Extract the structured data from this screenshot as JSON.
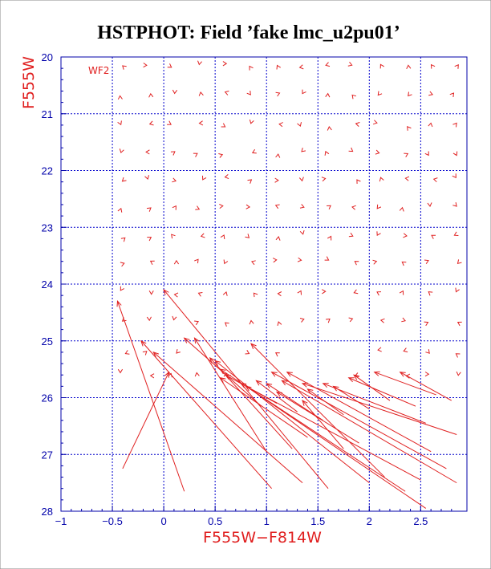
{
  "chart_data": {
    "type": "scatter",
    "title": "HSTPHOT: Field ’fake lmc_u2pu01’",
    "xlabel": "F555W−F814W",
    "ylabel": "F555W",
    "chip_label": "WF2",
    "xlim": [
      -1.0,
      2.95
    ],
    "ylim": [
      28,
      20
    ],
    "y_inverted": true,
    "grid": true,
    "x_ticks": [
      {
        "v": -1,
        "label": "−1"
      },
      {
        "v": -0.5,
        "label": "−0.5"
      },
      {
        "v": 0,
        "label": "0"
      },
      {
        "v": 0.5,
        "label": "0.5"
      },
      {
        "v": 1,
        "label": "1"
      },
      {
        "v": 1.5,
        "label": "1.5"
      },
      {
        "v": 2,
        "label": "2"
      },
      {
        "v": 2.5,
        "label": "2.5"
      }
    ],
    "y_ticks": [
      {
        "v": 20,
        "label": "20"
      },
      {
        "v": 21,
        "label": "21"
      },
      {
        "v": 22,
        "label": "22"
      },
      {
        "v": 23,
        "label": "23"
      },
      {
        "v": 24,
        "label": "24"
      },
      {
        "v": 25,
        "label": "25"
      },
      {
        "v": 26,
        "label": "26"
      },
      {
        "v": 27,
        "label": "27"
      },
      {
        "v": 28,
        "label": "28"
      }
    ],
    "colors": {
      "axes": "#0000aa",
      "grid": "#0000cc",
      "data": "#e02020",
      "title": "#000000"
    },
    "marker": "short vector (recovered minus input)",
    "long_vectors": [
      {
        "from": [
          0.2,
          27.65
        ],
        "to": [
          -0.45,
          24.3
        ]
      },
      {
        "from": [
          -0.4,
          27.25
        ],
        "to": [
          0.05,
          25.55
        ]
      },
      {
        "from": [
          1.05,
          27.6
        ],
        "to": [
          -0.22,
          25.0
        ]
      },
      {
        "from": [
          1.35,
          27.5
        ],
        "to": [
          -0.1,
          25.2
        ]
      },
      {
        "from": [
          1.6,
          27.6
        ],
        "to": [
          0.0,
          24.1
        ]
      },
      {
        "from": [
          1.0,
          26.95
        ],
        "to": [
          0.3,
          24.95
        ]
      },
      {
        "from": [
          2.0,
          27.5
        ],
        "to": [
          0.5,
          25.35
        ]
      },
      {
        "from": [
          2.35,
          27.65
        ],
        "to": [
          0.55,
          25.5
        ]
      },
      {
        "from": [
          2.15,
          27.4
        ],
        "to": [
          0.85,
          25.05
        ]
      },
      {
        "from": [
          1.25,
          26.9
        ],
        "to": [
          0.45,
          25.3
        ]
      },
      {
        "from": [
          2.5,
          27.45
        ],
        "to": [
          0.75,
          25.75
        ]
      },
      {
        "from": [
          2.75,
          27.25
        ],
        "to": [
          1.05,
          25.55
        ]
      },
      {
        "from": [
          2.55,
          27.95
        ],
        "to": [
          0.8,
          25.8
        ]
      },
      {
        "from": [
          2.85,
          27.5
        ],
        "to": [
          1.15,
          25.7
        ]
      },
      {
        "from": [
          2.6,
          26.95
        ],
        "to": [
          1.2,
          25.55
        ]
      },
      {
        "from": [
          2.85,
          26.65
        ],
        "to": [
          1.35,
          25.75
        ]
      },
      {
        "from": [
          2.55,
          26.45
        ],
        "to": [
          1.55,
          25.75
        ]
      },
      {
        "from": [
          2.45,
          26.15
        ],
        "to": [
          1.8,
          25.65
        ]
      },
      {
        "from": [
          2.65,
          25.95
        ],
        "to": [
          2.05,
          25.55
        ]
      },
      {
        "from": [
          2.8,
          26.05
        ],
        "to": [
          2.3,
          25.55
        ]
      },
      {
        "from": [
          2.2,
          26.05
        ],
        "to": [
          1.85,
          25.6
        ]
      },
      {
        "from": [
          2.0,
          26.2
        ],
        "to": [
          1.65,
          25.8
        ]
      },
      {
        "from": [
          1.75,
          26.3
        ],
        "to": [
          1.4,
          25.85
        ]
      },
      {
        "from": [
          1.55,
          26.4
        ],
        "to": [
          1.0,
          25.75
        ]
      },
      {
        "from": [
          1.3,
          26.25
        ],
        "to": [
          0.9,
          25.7
        ]
      },
      {
        "from": [
          1.1,
          26.1
        ],
        "to": [
          0.6,
          25.6
        ]
      },
      {
        "from": [
          1.9,
          26.8
        ],
        "to": [
          1.1,
          25.9
        ]
      },
      {
        "from": [
          1.4,
          26.7
        ],
        "to": [
          0.55,
          25.65
        ]
      },
      {
        "from": [
          0.95,
          26.15
        ],
        "to": [
          0.2,
          24.95
        ]
      },
      {
        "from": [
          1.75,
          26.9
        ],
        "to": [
          1.35,
          26.05
        ]
      }
    ]
  }
}
